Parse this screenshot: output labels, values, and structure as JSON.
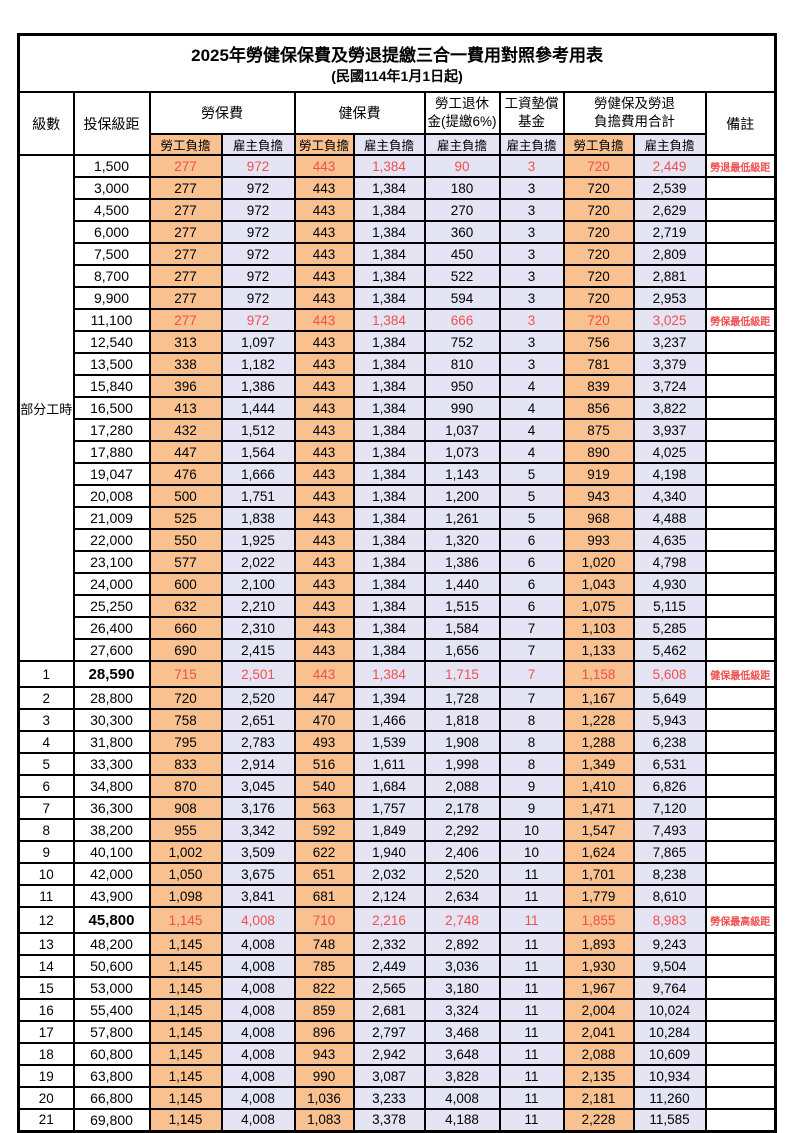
{
  "title": "2025年勞健保保費及勞退提繳三合一費用對照參考用表",
  "subtitle": "(民國114年1月1日起)",
  "colors": {
    "employee_bg": "#F9C18F",
    "employer_bg": "#E4E4F4",
    "highlight_red": "#F0504F",
    "border": "#000000"
  },
  "header": {
    "level": "級數",
    "bracket": "投保級距",
    "labor_ins": "勞保費",
    "health_ins": "健保費",
    "pension_line1": "勞工退休",
    "pension_line2": "金(提繳6%)",
    "fund_line1": "工資墊償",
    "fund_line2": "基金",
    "total_line1": "勞健保及勞退",
    "total_line2": "負擔費用合計",
    "employee": "勞工負擔",
    "employer": "雇主負擔",
    "remark": "備註"
  },
  "part_time_label": "部分工時",
  "part_time_rowspan": 23,
  "rows": [
    {
      "level": null,
      "bracket": "1,500",
      "labor_emp": "277",
      "labor_er": "972",
      "health_emp": "443",
      "health_er": "1,384",
      "pension": "90",
      "fund": "3",
      "total_emp": "720",
      "total_er": "2,449",
      "note": "勞退最低級距",
      "red": true,
      "key": false
    },
    {
      "level": null,
      "bracket": "3,000",
      "labor_emp": "277",
      "labor_er": "972",
      "health_emp": "443",
      "health_er": "1,384",
      "pension": "180",
      "fund": "3",
      "total_emp": "720",
      "total_er": "2,539",
      "note": "",
      "red": false,
      "key": false
    },
    {
      "level": null,
      "bracket": "4,500",
      "labor_emp": "277",
      "labor_er": "972",
      "health_emp": "443",
      "health_er": "1,384",
      "pension": "270",
      "fund": "3",
      "total_emp": "720",
      "total_er": "2,629",
      "note": "",
      "red": false,
      "key": false
    },
    {
      "level": null,
      "bracket": "6,000",
      "labor_emp": "277",
      "labor_er": "972",
      "health_emp": "443",
      "health_er": "1,384",
      "pension": "360",
      "fund": "3",
      "total_emp": "720",
      "total_er": "2,719",
      "note": "",
      "red": false,
      "key": false
    },
    {
      "level": null,
      "bracket": "7,500",
      "labor_emp": "277",
      "labor_er": "972",
      "health_emp": "443",
      "health_er": "1,384",
      "pension": "450",
      "fund": "3",
      "total_emp": "720",
      "total_er": "2,809",
      "note": "",
      "red": false,
      "key": false
    },
    {
      "level": null,
      "bracket": "8,700",
      "labor_emp": "277",
      "labor_er": "972",
      "health_emp": "443",
      "health_er": "1,384",
      "pension": "522",
      "fund": "3",
      "total_emp": "720",
      "total_er": "2,881",
      "note": "",
      "red": false,
      "key": false
    },
    {
      "level": null,
      "bracket": "9,900",
      "labor_emp": "277",
      "labor_er": "972",
      "health_emp": "443",
      "health_er": "1,384",
      "pension": "594",
      "fund": "3",
      "total_emp": "720",
      "total_er": "2,953",
      "note": "",
      "red": false,
      "key": false
    },
    {
      "level": null,
      "bracket": "11,100",
      "labor_emp": "277",
      "labor_er": "972",
      "health_emp": "443",
      "health_er": "1,384",
      "pension": "666",
      "fund": "3",
      "total_emp": "720",
      "total_er": "3,025",
      "note": "勞保最低級距",
      "red": true,
      "key": false
    },
    {
      "level": null,
      "bracket": "12,540",
      "labor_emp": "313",
      "labor_er": "1,097",
      "health_emp": "443",
      "health_er": "1,384",
      "pension": "752",
      "fund": "3",
      "total_emp": "756",
      "total_er": "3,237",
      "note": "",
      "red": false,
      "key": false
    },
    {
      "level": null,
      "bracket": "13,500",
      "labor_emp": "338",
      "labor_er": "1,182",
      "health_emp": "443",
      "health_er": "1,384",
      "pension": "810",
      "fund": "3",
      "total_emp": "781",
      "total_er": "3,379",
      "note": "",
      "red": false,
      "key": false
    },
    {
      "level": null,
      "bracket": "15,840",
      "labor_emp": "396",
      "labor_er": "1,386",
      "health_emp": "443",
      "health_er": "1,384",
      "pension": "950",
      "fund": "4",
      "total_emp": "839",
      "total_er": "3,724",
      "note": "",
      "red": false,
      "key": false
    },
    {
      "level": null,
      "bracket": "16,500",
      "labor_emp": "413",
      "labor_er": "1,444",
      "health_emp": "443",
      "health_er": "1,384",
      "pension": "990",
      "fund": "4",
      "total_emp": "856",
      "total_er": "3,822",
      "note": "",
      "red": false,
      "key": false
    },
    {
      "level": null,
      "bracket": "17,280",
      "labor_emp": "432",
      "labor_er": "1,512",
      "health_emp": "443",
      "health_er": "1,384",
      "pension": "1,037",
      "fund": "4",
      "total_emp": "875",
      "total_er": "3,937",
      "note": "",
      "red": false,
      "key": false
    },
    {
      "level": null,
      "bracket": "17,880",
      "labor_emp": "447",
      "labor_er": "1,564",
      "health_emp": "443",
      "health_er": "1,384",
      "pension": "1,073",
      "fund": "4",
      "total_emp": "890",
      "total_er": "4,025",
      "note": "",
      "red": false,
      "key": false
    },
    {
      "level": null,
      "bracket": "19,047",
      "labor_emp": "476",
      "labor_er": "1,666",
      "health_emp": "443",
      "health_er": "1,384",
      "pension": "1,143",
      "fund": "5",
      "total_emp": "919",
      "total_er": "4,198",
      "note": "",
      "red": false,
      "key": false
    },
    {
      "level": null,
      "bracket": "20,008",
      "labor_emp": "500",
      "labor_er": "1,751",
      "health_emp": "443",
      "health_er": "1,384",
      "pension": "1,200",
      "fund": "5",
      "total_emp": "943",
      "total_er": "4,340",
      "note": "",
      "red": false,
      "key": false
    },
    {
      "level": null,
      "bracket": "21,009",
      "labor_emp": "525",
      "labor_er": "1,838",
      "health_emp": "443",
      "health_er": "1,384",
      "pension": "1,261",
      "fund": "5",
      "total_emp": "968",
      "total_er": "4,488",
      "note": "",
      "red": false,
      "key": false
    },
    {
      "level": null,
      "bracket": "22,000",
      "labor_emp": "550",
      "labor_er": "1,925",
      "health_emp": "443",
      "health_er": "1,384",
      "pension": "1,320",
      "fund": "6",
      "total_emp": "993",
      "total_er": "4,635",
      "note": "",
      "red": false,
      "key": false
    },
    {
      "level": null,
      "bracket": "23,100",
      "labor_emp": "577",
      "labor_er": "2,022",
      "health_emp": "443",
      "health_er": "1,384",
      "pension": "1,386",
      "fund": "6",
      "total_emp": "1,020",
      "total_er": "4,798",
      "note": "",
      "red": false,
      "key": false
    },
    {
      "level": null,
      "bracket": "24,000",
      "labor_emp": "600",
      "labor_er": "2,100",
      "health_emp": "443",
      "health_er": "1,384",
      "pension": "1,440",
      "fund": "6",
      "total_emp": "1,043",
      "total_er": "4,930",
      "note": "",
      "red": false,
      "key": false
    },
    {
      "level": null,
      "bracket": "25,250",
      "labor_emp": "632",
      "labor_er": "2,210",
      "health_emp": "443",
      "health_er": "1,384",
      "pension": "1,515",
      "fund": "6",
      "total_emp": "1,075",
      "total_er": "5,115",
      "note": "",
      "red": false,
      "key": false
    },
    {
      "level": null,
      "bracket": "26,400",
      "labor_emp": "660",
      "labor_er": "2,310",
      "health_emp": "443",
      "health_er": "1,384",
      "pension": "1,584",
      "fund": "7",
      "total_emp": "1,103",
      "total_er": "5,285",
      "note": "",
      "red": false,
      "key": false
    },
    {
      "level": null,
      "bracket": "27,600",
      "labor_emp": "690",
      "labor_er": "2,415",
      "health_emp": "443",
      "health_er": "1,384",
      "pension": "1,656",
      "fund": "7",
      "total_emp": "1,133",
      "total_er": "5,462",
      "note": "",
      "red": false,
      "key": false
    },
    {
      "level": "1",
      "bracket": "28,590",
      "labor_emp": "715",
      "labor_er": "2,501",
      "health_emp": "443",
      "health_er": "1,384",
      "pension": "1,715",
      "fund": "7",
      "total_emp": "1,158",
      "total_er": "5,608",
      "note": "健保最低級距",
      "red": true,
      "key": true
    },
    {
      "level": "2",
      "bracket": "28,800",
      "labor_emp": "720",
      "labor_er": "2,520",
      "health_emp": "447",
      "health_er": "1,394",
      "pension": "1,728",
      "fund": "7",
      "total_emp": "1,167",
      "total_er": "5,649",
      "note": "",
      "red": false,
      "key": false
    },
    {
      "level": "3",
      "bracket": "30,300",
      "labor_emp": "758",
      "labor_er": "2,651",
      "health_emp": "470",
      "health_er": "1,466",
      "pension": "1,818",
      "fund": "8",
      "total_emp": "1,228",
      "total_er": "5,943",
      "note": "",
      "red": false,
      "key": false
    },
    {
      "level": "4",
      "bracket": "31,800",
      "labor_emp": "795",
      "labor_er": "2,783",
      "health_emp": "493",
      "health_er": "1,539",
      "pension": "1,908",
      "fund": "8",
      "total_emp": "1,288",
      "total_er": "6,238",
      "note": "",
      "red": false,
      "key": false
    },
    {
      "level": "5",
      "bracket": "33,300",
      "labor_emp": "833",
      "labor_er": "2,914",
      "health_emp": "516",
      "health_er": "1,611",
      "pension": "1,998",
      "fund": "8",
      "total_emp": "1,349",
      "total_er": "6,531",
      "note": "",
      "red": false,
      "key": false
    },
    {
      "level": "6",
      "bracket": "34,800",
      "labor_emp": "870",
      "labor_er": "3,045",
      "health_emp": "540",
      "health_er": "1,684",
      "pension": "2,088",
      "fund": "9",
      "total_emp": "1,410",
      "total_er": "6,826",
      "note": "",
      "red": false,
      "key": false
    },
    {
      "level": "7",
      "bracket": "36,300",
      "labor_emp": "908",
      "labor_er": "3,176",
      "health_emp": "563",
      "health_er": "1,757",
      "pension": "2,178",
      "fund": "9",
      "total_emp": "1,471",
      "total_er": "7,120",
      "note": "",
      "red": false,
      "key": false
    },
    {
      "level": "8",
      "bracket": "38,200",
      "labor_emp": "955",
      "labor_er": "3,342",
      "health_emp": "592",
      "health_er": "1,849",
      "pension": "2,292",
      "fund": "10",
      "total_emp": "1,547",
      "total_er": "7,493",
      "note": "",
      "red": false,
      "key": false
    },
    {
      "level": "9",
      "bracket": "40,100",
      "labor_emp": "1,002",
      "labor_er": "3,509",
      "health_emp": "622",
      "health_er": "1,940",
      "pension": "2,406",
      "fund": "10",
      "total_emp": "1,624",
      "total_er": "7,865",
      "note": "",
      "red": false,
      "key": false
    },
    {
      "level": "10",
      "bracket": "42,000",
      "labor_emp": "1,050",
      "labor_er": "3,675",
      "health_emp": "651",
      "health_er": "2,032",
      "pension": "2,520",
      "fund": "11",
      "total_emp": "1,701",
      "total_er": "8,238",
      "note": "",
      "red": false,
      "key": false
    },
    {
      "level": "11",
      "bracket": "43,900",
      "labor_emp": "1,098",
      "labor_er": "3,841",
      "health_emp": "681",
      "health_er": "2,124",
      "pension": "2,634",
      "fund": "11",
      "total_emp": "1,779",
      "total_er": "8,610",
      "note": "",
      "red": false,
      "key": false
    },
    {
      "level": "12",
      "bracket": "45,800",
      "labor_emp": "1,145",
      "labor_er": "4,008",
      "health_emp": "710",
      "health_er": "2,216",
      "pension": "2,748",
      "fund": "11",
      "total_emp": "1,855",
      "total_er": "8,983",
      "note": "勞保最高級距",
      "red": true,
      "key": true
    },
    {
      "level": "13",
      "bracket": "48,200",
      "labor_emp": "1,145",
      "labor_er": "4,008",
      "health_emp": "748",
      "health_er": "2,332",
      "pension": "2,892",
      "fund": "11",
      "total_emp": "1,893",
      "total_er": "9,243",
      "note": "",
      "red": false,
      "key": false
    },
    {
      "level": "14",
      "bracket": "50,600",
      "labor_emp": "1,145",
      "labor_er": "4,008",
      "health_emp": "785",
      "health_er": "2,449",
      "pension": "3,036",
      "fund": "11",
      "total_emp": "1,930",
      "total_er": "9,504",
      "note": "",
      "red": false,
      "key": false
    },
    {
      "level": "15",
      "bracket": "53,000",
      "labor_emp": "1,145",
      "labor_er": "4,008",
      "health_emp": "822",
      "health_er": "2,565",
      "pension": "3,180",
      "fund": "11",
      "total_emp": "1,967",
      "total_er": "9,764",
      "note": "",
      "red": false,
      "key": false
    },
    {
      "level": "16",
      "bracket": "55,400",
      "labor_emp": "1,145",
      "labor_er": "4,008",
      "health_emp": "859",
      "health_er": "2,681",
      "pension": "3,324",
      "fund": "11",
      "total_emp": "2,004",
      "total_er": "10,024",
      "note": "",
      "red": false,
      "key": false
    },
    {
      "level": "17",
      "bracket": "57,800",
      "labor_emp": "1,145",
      "labor_er": "4,008",
      "health_emp": "896",
      "health_er": "2,797",
      "pension": "3,468",
      "fund": "11",
      "total_emp": "2,041",
      "total_er": "10,284",
      "note": "",
      "red": false,
      "key": false
    },
    {
      "level": "18",
      "bracket": "60,800",
      "labor_emp": "1,145",
      "labor_er": "4,008",
      "health_emp": "943",
      "health_er": "2,942",
      "pension": "3,648",
      "fund": "11",
      "total_emp": "2,088",
      "total_er": "10,609",
      "note": "",
      "red": false,
      "key": false
    },
    {
      "level": "19",
      "bracket": "63,800",
      "labor_emp": "1,145",
      "labor_er": "4,008",
      "health_emp": "990",
      "health_er": "3,087",
      "pension": "3,828",
      "fund": "11",
      "total_emp": "2,135",
      "total_er": "10,934",
      "note": "",
      "red": false,
      "key": false
    },
    {
      "level": "20",
      "bracket": "66,800",
      "labor_emp": "1,145",
      "labor_er": "4,008",
      "health_emp": "1,036",
      "health_er": "3,233",
      "pension": "4,008",
      "fund": "11",
      "total_emp": "2,181",
      "total_er": "11,260",
      "note": "",
      "red": false,
      "key": false
    },
    {
      "level": "21",
      "bracket": "69,800",
      "labor_emp": "1,145",
      "labor_er": "4,008",
      "health_emp": "1,083",
      "health_er": "3,378",
      "pension": "4,188",
      "fund": "11",
      "total_emp": "2,228",
      "total_er": "11,585",
      "note": "",
      "red": false,
      "key": false
    }
  ]
}
